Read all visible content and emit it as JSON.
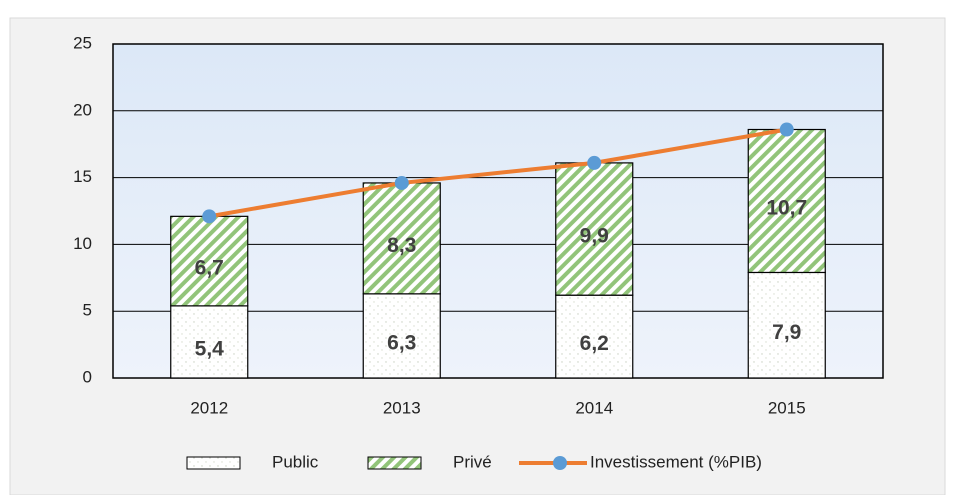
{
  "chart_data": {
    "type": "stacked_bar_line",
    "categories": [
      "2012",
      "2013",
      "2014",
      "2015"
    ],
    "series": [
      {
        "name": "Public",
        "type": "bar",
        "color": "#ffffff",
        "values": [
          5.4,
          6.3,
          6.2,
          7.9
        ],
        "value_labels": [
          "5,4",
          "6,3",
          "6,2",
          "7,9"
        ]
      },
      {
        "name": "Privé",
        "type": "bar",
        "color": "#92c47a",
        "values": [
          6.7,
          8.3,
          9.9,
          10.7
        ],
        "value_labels": [
          "6,7",
          "8,3",
          "9,9",
          "10,7"
        ]
      },
      {
        "name": "Investissement (%PIB)",
        "type": "line",
        "color": "#ed7d31",
        "marker_color": "#5b9bd5",
        "values": [
          12.1,
          14.6,
          16.1,
          18.6
        ]
      }
    ],
    "ylim": [
      0,
      25
    ],
    "yticks": [
      0,
      5,
      10,
      15,
      20,
      25
    ],
    "grid": true,
    "legend": "bottom"
  }
}
